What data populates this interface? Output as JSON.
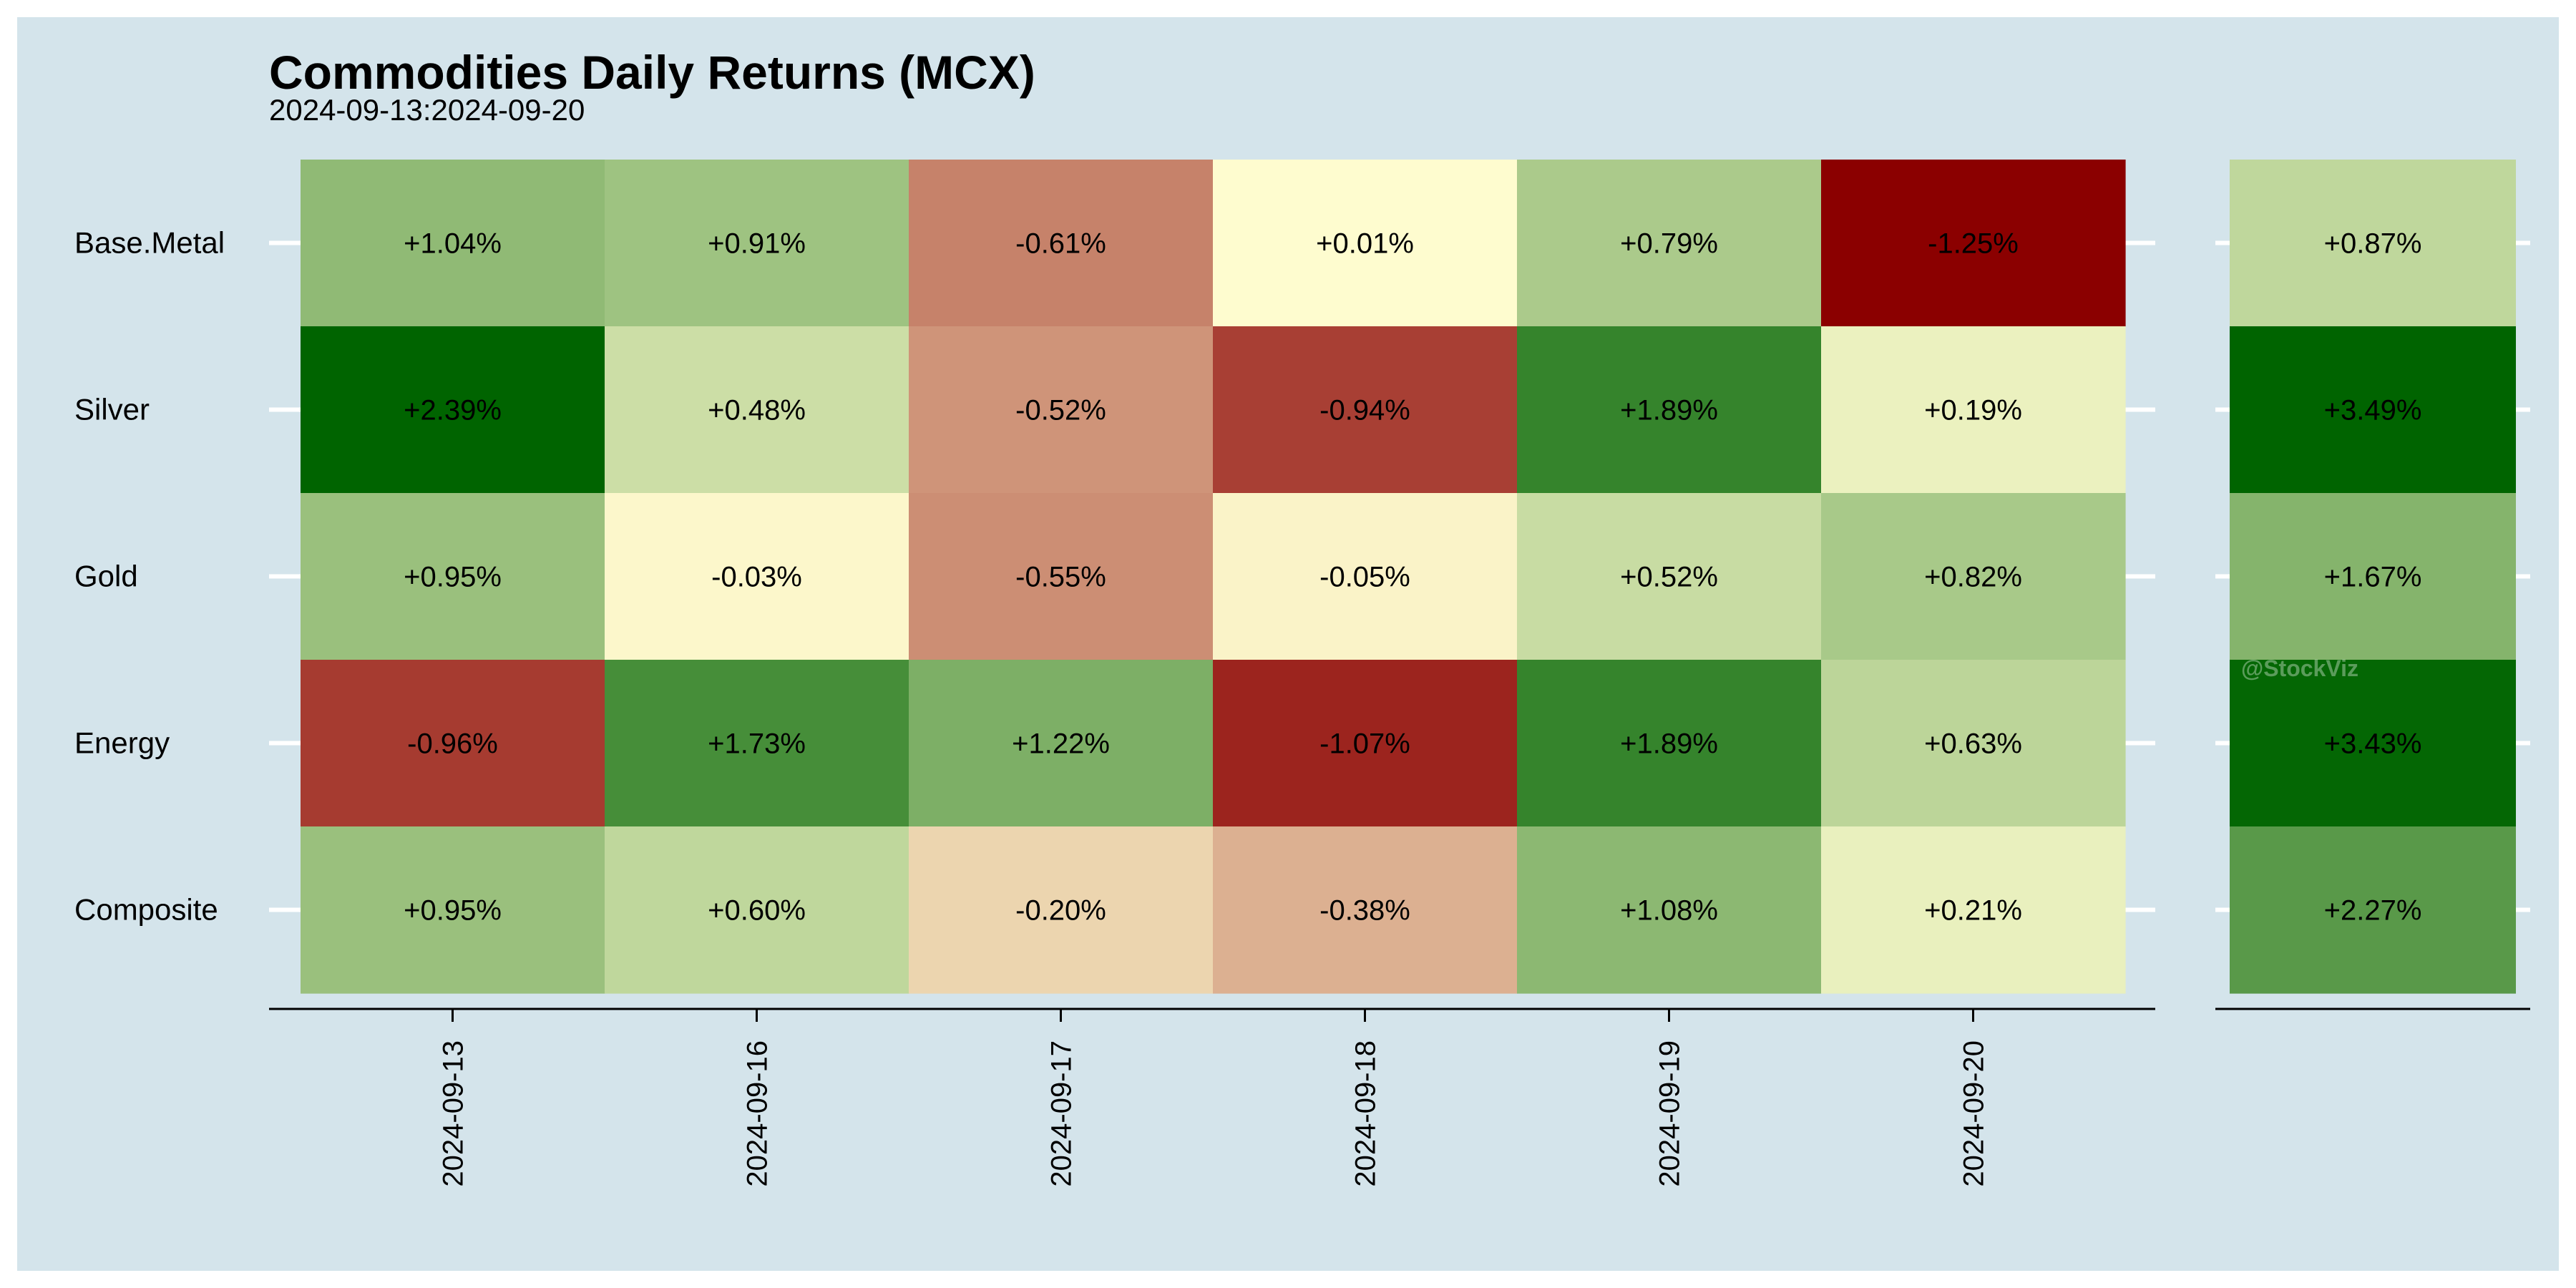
{
  "chart_data": {
    "type": "heatmap",
    "title": "Commodities Daily Returns (MCX)",
    "subtitle": "2024-09-13:2024-09-20",
    "watermark": "@StockViz",
    "rows": [
      "Base.Metal",
      "Silver",
      "Gold",
      "Energy",
      "Composite"
    ],
    "columns": [
      "2024-09-13",
      "2024-09-16",
      "2024-09-17",
      "2024-09-18",
      "2024-09-19",
      "2024-09-20"
    ],
    "values": [
      [
        1.04,
        0.91,
        -0.61,
        0.01,
        0.79,
        -1.25
      ],
      [
        2.39,
        0.48,
        -0.52,
        -0.94,
        1.89,
        0.19
      ],
      [
        0.95,
        -0.03,
        -0.55,
        -0.05,
        0.52,
        0.82
      ],
      [
        -0.96,
        1.73,
        1.22,
        -1.07,
        1.89,
        0.63
      ],
      [
        0.95,
        0.6,
        -0.2,
        -0.38,
        1.08,
        0.21
      ]
    ],
    "totals": [
      0.87,
      3.49,
      1.67,
      3.43,
      2.27
    ],
    "color_scale": {
      "low": "#8B0000",
      "mid": "#FFFDD0",
      "high": "#006400"
    },
    "background": "#D4E4EB"
  }
}
